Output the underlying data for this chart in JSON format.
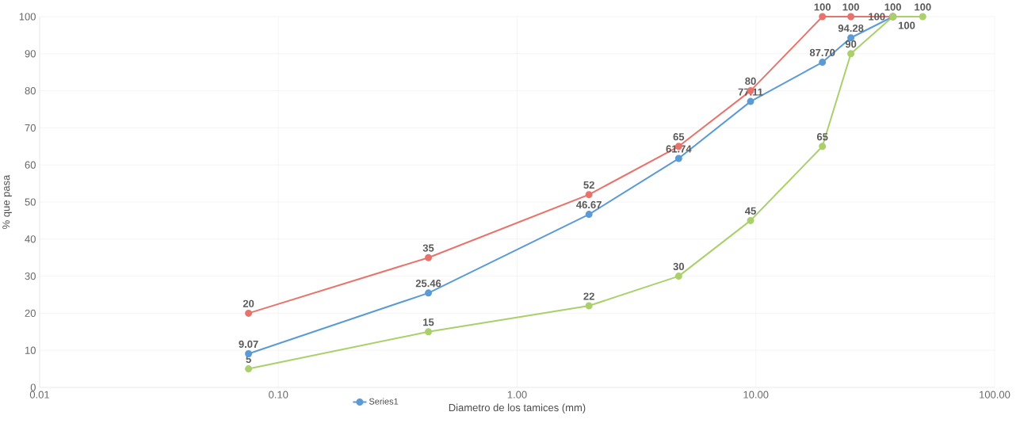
{
  "chart_data": {
    "type": "line",
    "xlabel": "Diametro de los tamices (mm)",
    "ylabel": "% que pasa",
    "x": [
      0.075,
      0.425,
      2.0,
      4.75,
      9.5,
      19.0,
      25.0,
      37.5,
      50.0
    ],
    "series": [
      {
        "name": "Series1",
        "color": "#5b9bd5",
        "values": [
          9.07,
          25.46,
          46.67,
          61.74,
          77.11,
          87.7,
          94.28,
          100,
          null
        ],
        "value_labels": [
          "9.07",
          "25.46",
          "46.67",
          "61.74",
          "77.11",
          "87.70",
          "94.28",
          "100",
          null
        ]
      },
      {
        "color": "#e8736b",
        "values": [
          20,
          35,
          52,
          65,
          80,
          100,
          100,
          100,
          null
        ],
        "value_labels": [
          "20",
          "35",
          "52",
          "65",
          "80",
          "100",
          "100",
          "100",
          null
        ]
      },
      {
        "color": "#a9d06a",
        "values": [
          5,
          15,
          22,
          30,
          45,
          65,
          90,
          100,
          100
        ],
        "value_labels": [
          "5",
          "15",
          "22",
          "30",
          "45",
          "65",
          "90",
          "100",
          "100"
        ]
      }
    ],
    "log": "x",
    "xlim": [
      0.01,
      100
    ],
    "ylim": [
      0,
      100
    ],
    "xticks": [
      {
        "value": 0.01,
        "label": "0.01"
      },
      {
        "value": 0.1,
        "label": "0.10"
      },
      {
        "value": 1,
        "label": "1.00"
      },
      {
        "value": 10,
        "label": "10.00"
      },
      {
        "value": 100,
        "label": "100.00"
      }
    ],
    "yticks": [
      0,
      10,
      20,
      30,
      40,
      50,
      60,
      70,
      80,
      90,
      100
    ],
    "grid": true,
    "legend": "bottom",
    "marker": "circle",
    "line_style": "solid"
  }
}
